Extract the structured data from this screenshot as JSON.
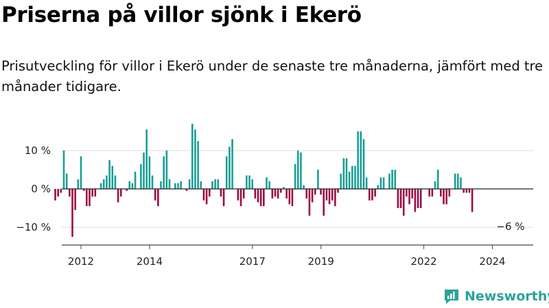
{
  "header": {
    "title": "Priserna på villor sjönk i Ekerö",
    "subtitle": "Prisutveckling för villor i Ekerö under de senaste tre månaderna, jämfört med tre månader tidigare."
  },
  "brand": {
    "name": "Newsworthy"
  },
  "colors": {
    "positive": "#1a9e96",
    "negative": "#9c0c46",
    "grid": "#dddddd",
    "axis": "#444444",
    "brand": "#2aa39a"
  },
  "chart_data": {
    "type": "bar",
    "title": "Priserna på villor sjönk i Ekerö",
    "xlabel": "",
    "ylabel": "",
    "ylim": [
      -15,
      18
    ],
    "yticks": [
      10,
      0,
      -10
    ],
    "ytick_labels": [
      "10 %",
      "0 %",
      "−10 %"
    ],
    "xticks": [
      {
        "label": "2012",
        "x": 2012.0
      },
      {
        "label": "2014",
        "x": 2014.0
      },
      {
        "label": "2017",
        "x": 2017.0
      },
      {
        "label": "2019",
        "x": 2019.0
      },
      {
        "label": "2022",
        "x": 2022.0
      },
      {
        "label": "2024",
        "x": 2024.0
      }
    ],
    "x_start": 2011.0,
    "x_end": 2024.33,
    "step": 0.0833,
    "annotation": {
      "label": "−6 %",
      "value": -6
    },
    "values": [
      -3,
      -2,
      -1,
      10,
      4,
      -2,
      -12.5,
      -5.5,
      2.5,
      8.5,
      -0.5,
      -4.5,
      -4.5,
      -2,
      -2,
      0,
      1.5,
      2.5,
      3.5,
      7.5,
      6,
      3.5,
      -3.5,
      -2,
      0,
      -0.5,
      2,
      1.5,
      4.5,
      0,
      6.5,
      9.5,
      15.5,
      8.5,
      3.5,
      -3,
      -4.5,
      2,
      8.5,
      10,
      2.5,
      0,
      1.5,
      1.5,
      2,
      0,
      -0.5,
      2.5,
      17,
      15.5,
      12.5,
      2,
      -3,
      -4,
      -2,
      2,
      2.5,
      2.5,
      -2,
      -4.5,
      8.5,
      11,
      13,
      0,
      -3,
      -4.5,
      -2.5,
      3.5,
      3.5,
      2.5,
      -2.5,
      -3.5,
      -4.5,
      -4.5,
      3,
      2,
      -2.5,
      -2,
      -2.5,
      -1,
      0.5,
      -2.5,
      -4,
      -4.5,
      6.5,
      10,
      9.5,
      1,
      -2.5,
      -7,
      -3.5,
      -1.5,
      5,
      -1.5,
      -7,
      -3,
      -4,
      -3,
      -4.5,
      -1,
      4,
      8,
      8,
      4.5,
      6,
      6,
      15,
      15,
      13,
      3,
      -3,
      -3,
      -2,
      1,
      3,
      3,
      0,
      4,
      5,
      5,
      -5,
      -5,
      -7,
      -2,
      -4,
      -2.5,
      -6,
      -5,
      -5,
      0,
      0,
      -2,
      -2,
      2,
      5,
      -2,
      -4,
      -4,
      -2,
      0,
      4,
      4,
      3,
      -1,
      -1,
      -1,
      -6
    ]
  }
}
